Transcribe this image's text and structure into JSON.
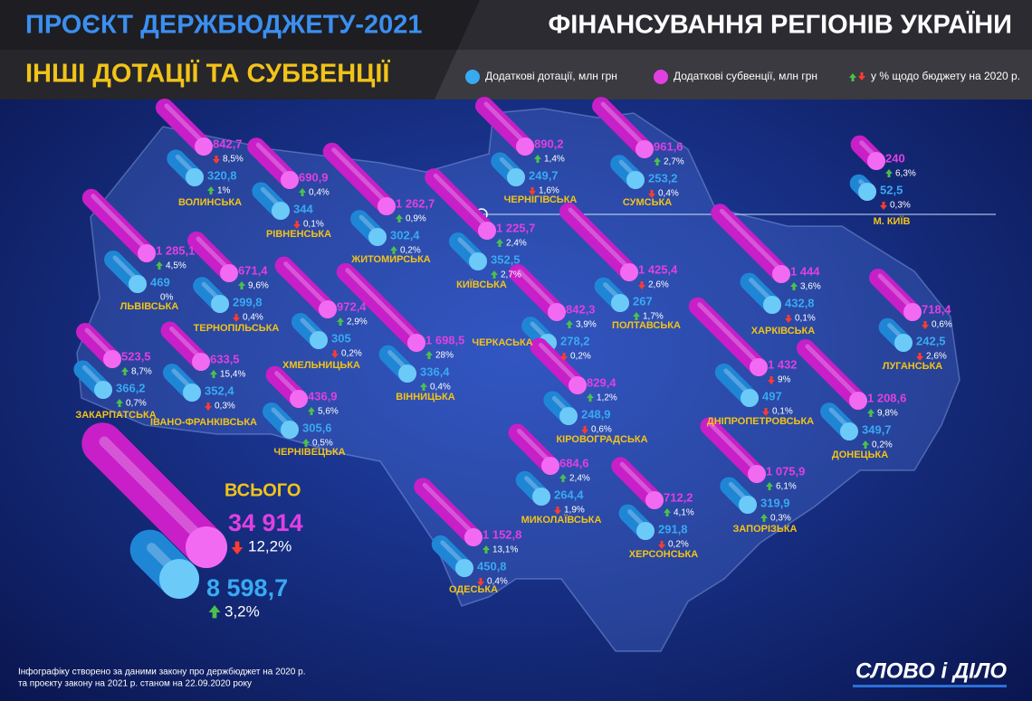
{
  "header": {
    "title_left": "ПРОЄКТ ДЕРЖБЮДЖЕТУ-2021",
    "subtitle": "ІНШІ ДОТАЦІЇ ТА СУБВЕНЦІЇ",
    "title_right": "ФІНАНСУВАННЯ РЕГІОНІВ УКРАЇНИ"
  },
  "legend": {
    "grants": "Додаткові дотації, млн грн",
    "subsidies": "Додаткові субвенції, млн грн",
    "change": "у % щодо бюджету на 2020 р."
  },
  "colors": {
    "grants": "#38aaf2",
    "subsidies": "#e23fe2",
    "up": "#4cc04c",
    "down": "#ff3b2f",
    "name": "#f2c318"
  },
  "regions": [
    {
      "name": "ВОЛИНСЬКА",
      "subsidy": "842,7",
      "subsidy_change": "8,5%",
      "subsidy_trend": "down",
      "grant": "320,8",
      "grant_change": "1%",
      "grant_trend": "up"
    },
    {
      "name": "РІВНЕНСЬКА",
      "subsidy": "690,9",
      "subsidy_change": "0,4%",
      "subsidy_trend": "up",
      "grant": "344",
      "grant_change": "0,1%",
      "grant_trend": "down"
    },
    {
      "name": "ЖИТОМИРСЬКА",
      "subsidy": "1 262,7",
      "subsidy_change": "0,9%",
      "subsidy_trend": "up",
      "grant": "302,4",
      "grant_change": "0,2%",
      "grant_trend": "up"
    },
    {
      "name": "КИЇВСЬКА",
      "subsidy": "1 225,7",
      "subsidy_change": "2,4%",
      "subsidy_trend": "up",
      "grant": "352,5",
      "grant_change": "2,7%",
      "grant_trend": "up"
    },
    {
      "name": "ЧЕРНІГІВСЬКА",
      "subsidy": "890,2",
      "subsidy_change": "1,4%",
      "subsidy_trend": "up",
      "grant": "249,7",
      "grant_change": "1,6%",
      "grant_trend": "down"
    },
    {
      "name": "СУМСЬКА",
      "subsidy": "961,6",
      "subsidy_change": "2,7%",
      "subsidy_trend": "up",
      "grant": "253,2",
      "grant_change": "0,4%",
      "grant_trend": "down"
    },
    {
      "name": "М. КИЇВ",
      "subsidy": "240",
      "subsidy_change": "6,3%",
      "subsidy_trend": "up",
      "grant": "52,5",
      "grant_change": "0,3%",
      "grant_trend": "down"
    },
    {
      "name": "ЛЬВІВСЬКА",
      "subsidy": "1 285,1",
      "subsidy_change": "4,5%",
      "subsidy_trend": "up",
      "grant": "469",
      "grant_change": "0%",
      "grant_trend": null
    },
    {
      "name": "ТЕРНОПІЛЬСЬКА",
      "subsidy": "671,4",
      "subsidy_change": "9,6%",
      "subsidy_trend": "up",
      "grant": "299,8",
      "grant_change": "0,4%",
      "grant_trend": "down"
    },
    {
      "name": "ХМЕЛЬНИЦЬКА",
      "subsidy": "972,4",
      "subsidy_change": "2,9%",
      "subsidy_trend": "up",
      "grant": "305",
      "grant_change": "0,2%",
      "grant_trend": "down"
    },
    {
      "name": "ВІННИЦЬКА",
      "subsidy": "1 698,5",
      "subsidy_change": "28%",
      "subsidy_trend": "up",
      "grant": "336,4",
      "grant_change": "0,4%",
      "grant_trend": "up"
    },
    {
      "name": "ЧЕРКАСЬКА",
      "subsidy": "842,3",
      "subsidy_change": "3,9%",
      "subsidy_trend": "up",
      "grant": "278,2",
      "grant_change": "0,2%",
      "grant_trend": "down"
    },
    {
      "name": "ПОЛТАВСЬКА",
      "subsidy": "1 425,4",
      "subsidy_change": "2,6%",
      "subsidy_trend": "down",
      "grant": "267",
      "grant_change": "1,7%",
      "grant_trend": "up"
    },
    {
      "name": "ХАРКІВСЬКА",
      "subsidy": "1 444",
      "subsidy_change": "3,6%",
      "subsidy_trend": "up",
      "grant": "432,8",
      "grant_change": "0,1%",
      "grant_trend": "down"
    },
    {
      "name": "ЛУГАНСЬКА",
      "subsidy": "718,4",
      "subsidy_change": "0,6%",
      "subsidy_trend": "down",
      "grant": "242,5",
      "grant_change": "2,6%",
      "grant_trend": "down"
    },
    {
      "name": "ЗАКАРПАТСЬКА",
      "subsidy": "523,5",
      "subsidy_change": "8,7%",
      "subsidy_trend": "up",
      "grant": "366,2",
      "grant_change": "0,7%",
      "grant_trend": "up"
    },
    {
      "name": "ІВАНО-ФРАНКІВСЬКА",
      "subsidy": "633,5",
      "subsidy_change": "15,4%",
      "subsidy_trend": "up",
      "grant": "352,4",
      "grant_change": "0,3%",
      "grant_trend": "down"
    },
    {
      "name": "ЧЕРНІВЕЦЬКА",
      "subsidy": "436,9",
      "subsidy_change": "5,6%",
      "subsidy_trend": "up",
      "grant": "305,6",
      "grant_change": "0,5%",
      "grant_trend": "up"
    },
    {
      "name": "КІРОВОГРАДСЬКА",
      "subsidy": "829,4",
      "subsidy_change": "1,2%",
      "subsidy_trend": "up",
      "grant": "248,9",
      "grant_change": "0,6%",
      "grant_trend": "down"
    },
    {
      "name": "ДНІПРОПЕТРОВСЬКА",
      "subsidy": "1 432",
      "subsidy_change": "9%",
      "subsidy_trend": "down",
      "grant": "497",
      "grant_change": "0,1%",
      "grant_trend": "down"
    },
    {
      "name": "ДОНЕЦЬКА",
      "subsidy": "1 208,6",
      "subsidy_change": "9,8%",
      "subsidy_trend": "up",
      "grant": "349,7",
      "grant_change": "0,2%",
      "grant_trend": "up"
    },
    {
      "name": "МИКОЛАЇВСЬКА",
      "subsidy": "684,6",
      "subsidy_change": "2,4%",
      "subsidy_trend": "up",
      "grant": "264,4",
      "grant_change": "1,9%",
      "grant_trend": "down"
    },
    {
      "name": "ХЕРСОНСЬКА",
      "subsidy": "712,2",
      "subsidy_change": "4,1%",
      "subsidy_trend": "up",
      "grant": "291,8",
      "grant_change": "0,2%",
      "grant_trend": "down"
    },
    {
      "name": "ЗАПОРІЗЬКА",
      "subsidy": "1 075,9",
      "subsidy_change": "6,1%",
      "subsidy_trend": "up",
      "grant": "319,9",
      "grant_change": "0,3%",
      "grant_trend": "up"
    },
    {
      "name": "ОДЕСЬКА",
      "subsidy": "1 152,8",
      "subsidy_change": "13,1%",
      "subsidy_trend": "up",
      "grant": "450,8",
      "grant_change": "0,4%",
      "grant_trend": "down"
    }
  ],
  "total": {
    "label": "ВСЬОГО",
    "subsidy": "34 914",
    "subsidy_change": "12,2%",
    "subsidy_trend": "down",
    "grant": "8 598,7",
    "grant_change": "3,2%",
    "grant_trend": "up"
  },
  "footer": {
    "note": [
      "Інфографіку створено за даними закону про держбюджет на 2020 р.",
      "та проєкту закону на 2021 р. станом на 22.09.2020 року"
    ],
    "logo": "СЛОВО і ДІЛО"
  }
}
